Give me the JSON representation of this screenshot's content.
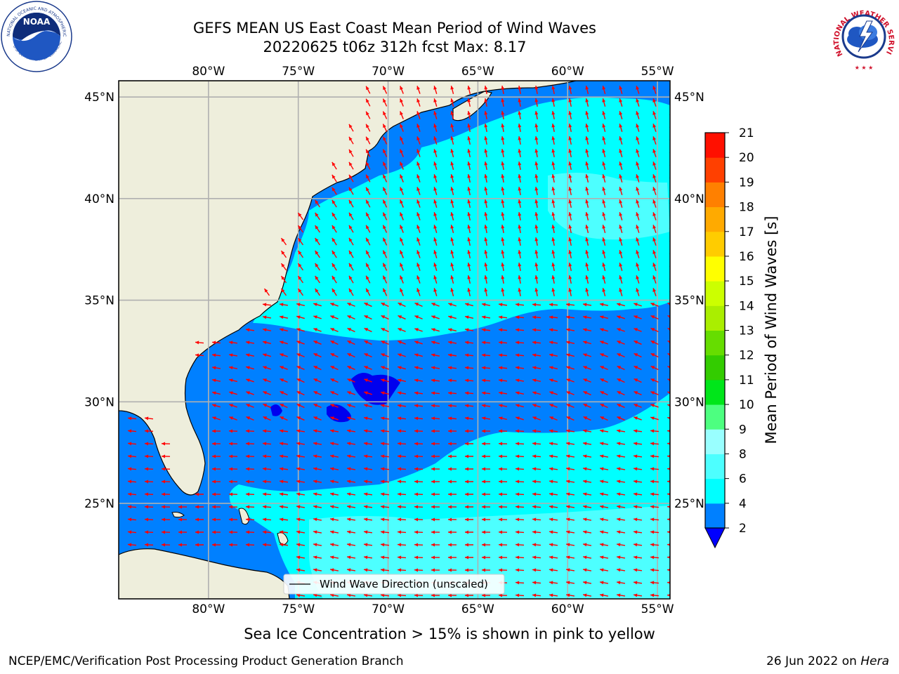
{
  "header": {
    "title": "GEFS MEAN US East Coast Mean Period of Wind Waves",
    "subtitle": "20220625 t06z 312h fcst   Max: 8.17"
  },
  "logos": {
    "left_outer_text": "NATIONAL OCEANIC AND ATMOSPHERIC ADMINISTRATION",
    "left_bottom_text": "U.S. DEPARTMENT OF COMMERCE",
    "left_center_text": "NOAA",
    "right_text": "NATIONAL WEATHER SERVICE"
  },
  "map": {
    "lon_labels": [
      "80°W",
      "75°W",
      "70°W",
      "65°W",
      "60°W",
      "55°W"
    ],
    "lon_values": [
      -80,
      -75,
      -70,
      -65,
      -60,
      -55
    ],
    "lat_labels": [
      "45°N",
      "40°N",
      "35°N",
      "30°N",
      "25°N"
    ],
    "lat_values": [
      45,
      40,
      35,
      30,
      25
    ],
    "extent": {
      "lon_min": -85,
      "lon_max": -54.3,
      "lat_min": 20.3,
      "lat_max": 45.8
    },
    "ocean_colors": {
      "lt2": "#0055ff",
      "2to4": "#0080ff",
      "4to6": "#00ffff",
      "6to8": "#4dffff",
      "8to9": "#99ffff"
    },
    "land_color": "#eeeedc",
    "arrow_color": "#ff0000",
    "grid_color": "#b0b0b0",
    "legend": {
      "label": "Wind Wave Direction (unscaled)"
    }
  },
  "colorbar": {
    "title": "Mean Period of Wind Waves [s]",
    "ticks": [
      "2",
      "4",
      "6",
      "8",
      "9",
      "10",
      "11",
      "12",
      "13",
      "14",
      "15",
      "16",
      "17",
      "18",
      "19",
      "20",
      "21"
    ],
    "colors": [
      "#0080ff",
      "#00ffff",
      "#4dffff",
      "#99ffff",
      "#4dff80",
      "#00e61a",
      "#33cc00",
      "#66dd00",
      "#aaee00",
      "#ccff00",
      "#ffff00",
      "#ffcc00",
      "#ffaa00",
      "#ff8000",
      "#ff4000",
      "#ff1000"
    ],
    "under_color": "#0000ff"
  },
  "note": "Sea Ice Concentration > 15% is shown in pink to yellow",
  "footer": {
    "left": "NCEP/EMC/Verification Post Processing Product Generation Branch",
    "right_date": "26 Jun 2022 on",
    "right_machine": "Hera"
  }
}
